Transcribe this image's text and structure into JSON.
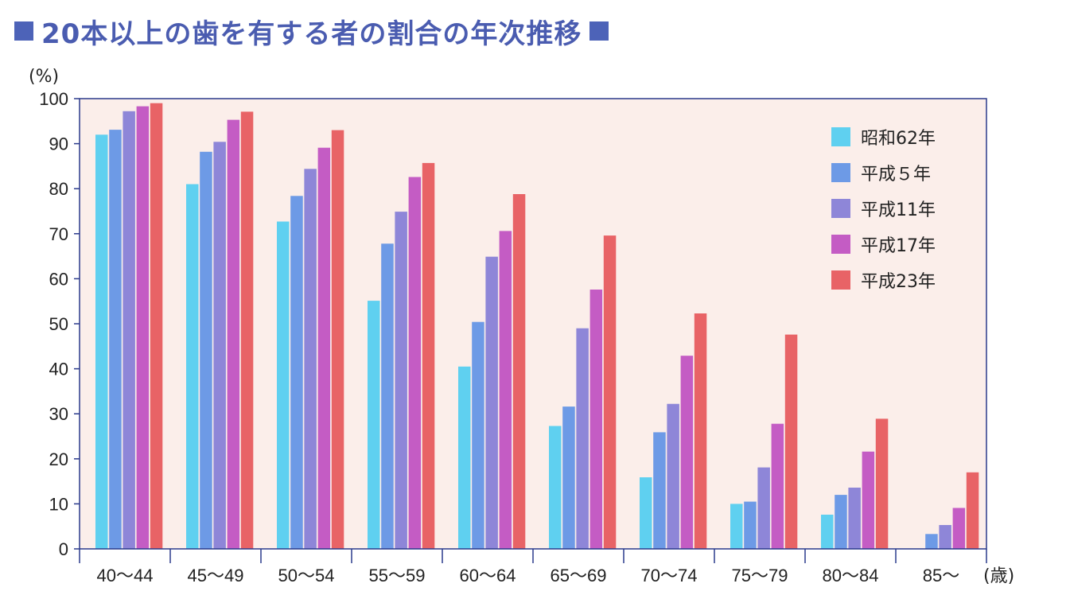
{
  "title": "20本以上の歯を有する者の割合の年次推移",
  "colors": {
    "title": "#4a5cb0",
    "title_square": "#4d63b8",
    "plot_background": "#fbeeea",
    "axis": "#2a3a8c"
  },
  "chart_data": {
    "type": "bar",
    "title": "20本以上の歯を有する者の割合の年次推移",
    "ylabel": "(%)",
    "xlabel": "(歳)",
    "ylim": [
      0,
      100
    ],
    "yticks": [
      0,
      10,
      20,
      30,
      40,
      50,
      60,
      70,
      80,
      90,
      100
    ],
    "grid": false,
    "legend_position": "top-right",
    "categories": [
      "40〜44",
      "45〜49",
      "50〜54",
      "55〜59",
      "60〜64",
      "65〜69",
      "70〜74",
      "75〜79",
      "80〜84",
      "85〜"
    ],
    "series": [
      {
        "name": "昭和62年",
        "color": "#5fd0f0",
        "values": [
          92.0,
          81.0,
          72.7,
          55.1,
          40.5,
          27.3,
          15.9,
          10.0,
          7.6,
          null
        ]
      },
      {
        "name": "平成５年",
        "color": "#6d9ae6",
        "values": [
          93.1,
          88.2,
          78.4,
          67.8,
          50.4,
          31.6,
          25.9,
          10.5,
          12.0,
          3.3
        ]
      },
      {
        "name": "平成11年",
        "color": "#8e86d8",
        "values": [
          97.2,
          90.4,
          84.4,
          74.9,
          64.9,
          49.0,
          32.2,
          18.1,
          13.6,
          5.3
        ]
      },
      {
        "name": "平成17年",
        "color": "#c45cc4",
        "values": [
          98.3,
          95.3,
          89.1,
          82.6,
          70.6,
          57.6,
          42.9,
          27.8,
          21.6,
          9.1
        ]
      },
      {
        "name": "平成23年",
        "color": "#e86366",
        "values": [
          99.0,
          97.1,
          93.0,
          85.7,
          78.8,
          69.6,
          52.3,
          47.6,
          28.9,
          17.0
        ]
      }
    ]
  }
}
